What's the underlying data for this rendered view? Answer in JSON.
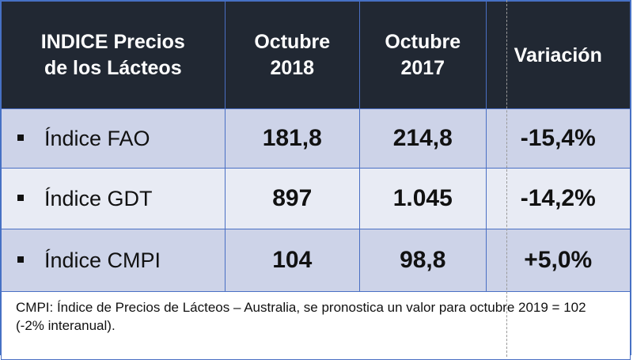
{
  "header": {
    "col1_line1": "INDICE Precios",
    "col1_line2": "de los Lácteos",
    "col2_line1": "Octubre",
    "col2_line2": "2018",
    "col3_line1": "Octubre",
    "col3_line2": "2017",
    "col4": "Variación"
  },
  "rows": [
    {
      "label": "Índice FAO",
      "oct2018": "181,8",
      "oct2017": "214,8",
      "variation": "-15,4%"
    },
    {
      "label": "Índice GDT",
      "oct2018": "897",
      "oct2017": "1.045",
      "variation": "-14,2%"
    },
    {
      "label": "Índice CMPI",
      "oct2018": "104",
      "oct2017": "98,8",
      "variation": "+5,0%"
    }
  ],
  "note": "CMPI: Índice de Precios de Lácteos – Australia, se pronostica un valor para octubre 2019 = 102 (-2% interanual).",
  "colors": {
    "header_bg": "#212833",
    "row_dark": "#cdd3e8",
    "row_light": "#e8ebf4",
    "border": "#4a6fc4"
  }
}
